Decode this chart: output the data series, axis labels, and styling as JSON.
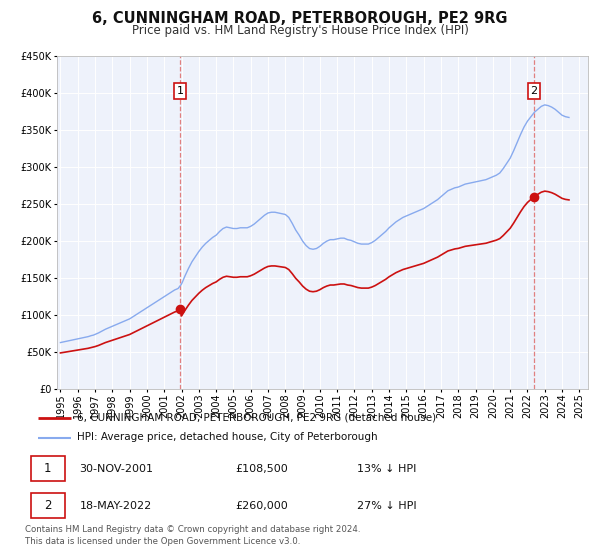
{
  "title": "6, CUNNINGHAM ROAD, PETERBOROUGH, PE2 9RG",
  "subtitle": "Price paid vs. HM Land Registry's House Price Index (HPI)",
  "ylim": [
    0,
    450000
  ],
  "xlim_start": 1994.8,
  "xlim_end": 2025.5,
  "yticks": [
    0,
    50000,
    100000,
    150000,
    200000,
    250000,
    300000,
    350000,
    400000,
    450000
  ],
  "xticks": [
    1995,
    1996,
    1997,
    1998,
    1999,
    2000,
    2001,
    2002,
    2003,
    2004,
    2005,
    2006,
    2007,
    2008,
    2009,
    2010,
    2011,
    2012,
    2013,
    2014,
    2015,
    2016,
    2017,
    2018,
    2019,
    2020,
    2021,
    2022,
    2023,
    2024,
    2025
  ],
  "background_color": "#ffffff",
  "plot_bg_color": "#eef2fb",
  "grid_color": "#ffffff",
  "marker1_x": 2001.917,
  "marker1_y": 108500,
  "marker2_x": 2022.375,
  "marker2_y": 260000,
  "vline1_x": 2001.917,
  "vline2_x": 2022.375,
  "vline_color": "#e08080",
  "sale_color": "#cc1111",
  "hpi_color": "#88aaee",
  "legend1_label": "6, CUNNINGHAM ROAD, PETERBOROUGH, PE2 9RG (detached house)",
  "legend2_label": "HPI: Average price, detached house, City of Peterborough",
  "table_row1": [
    "1",
    "30-NOV-2001",
    "£108,500",
    "13% ↓ HPI"
  ],
  "table_row2": [
    "2",
    "18-MAY-2022",
    "£260,000",
    "27% ↓ HPI"
  ],
  "footer": "Contains HM Land Registry data © Crown copyright and database right 2024.\nThis data is licensed under the Open Government Licence v3.0.",
  "title_fontsize": 10.5,
  "subtitle_fontsize": 8.5,
  "tick_fontsize": 7,
  "legend_fontsize": 7.5,
  "table_fontsize": 8,
  "footer_fontsize": 6.2
}
